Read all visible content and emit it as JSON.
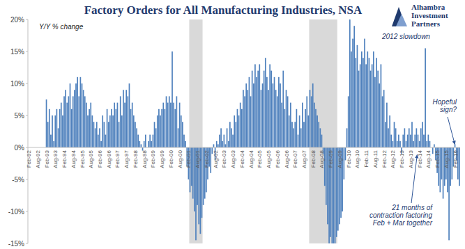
{
  "chart_data": {
    "type": "bar",
    "title": "Factory Orders for All Manufacturing Industries, NSA",
    "subtitle": "Y/Y % change",
    "source": "Alhambra Investment Partners",
    "color": "#4f81bd",
    "grid": false,
    "ylim": [
      -15,
      20
    ],
    "yticks": [
      {
        "value": 20,
        "label": "20%"
      },
      {
        "value": 15,
        "label": "15%"
      },
      {
        "value": 10,
        "label": "10%"
      },
      {
        "value": 5,
        "label": "5%"
      },
      {
        "value": 0,
        "label": "0%"
      },
      {
        "value": -5,
        "label": "-5%"
      },
      {
        "value": -10,
        "label": "-10%"
      },
      {
        "value": -15,
        "label": "-15%"
      }
    ],
    "recessions": [
      [
        109,
        117
      ],
      [
        190,
        208
      ]
    ],
    "annotations": [
      {
        "lines": [
          "2012 slowdown"
        ]
      },
      {
        "lines": [
          "Hopeful",
          "sign?"
        ]
      },
      {
        "lines": [
          "21 months of",
          "contraction factoring",
          "Feb + Mar together"
        ]
      }
    ],
    "categories": [
      "Feb-92",
      null,
      null,
      null,
      null,
      null,
      "Aug-92",
      null,
      null,
      null,
      null,
      null,
      "Feb-93",
      null,
      null,
      null,
      null,
      null,
      "Aug-93",
      null,
      null,
      null,
      null,
      null,
      "Feb-94",
      null,
      null,
      null,
      null,
      null,
      "Aug-94",
      null,
      null,
      null,
      null,
      null,
      "Feb-95",
      null,
      null,
      null,
      null,
      null,
      "Aug-95",
      null,
      null,
      null,
      null,
      null,
      "Feb-96",
      null,
      null,
      null,
      null,
      null,
      "Aug-96",
      null,
      null,
      null,
      null,
      null,
      "Feb-97",
      null,
      null,
      null,
      null,
      null,
      "Aug-97",
      null,
      null,
      null,
      null,
      null,
      "Feb-98",
      null,
      null,
      null,
      null,
      null,
      "Aug-98",
      null,
      null,
      null,
      null,
      null,
      "Feb-99",
      null,
      null,
      null,
      null,
      null,
      "Aug-99",
      null,
      null,
      null,
      null,
      null,
      "Feb-00",
      null,
      null,
      null,
      null,
      null,
      "Aug-00",
      null,
      null,
      null,
      null,
      null,
      "Feb-01",
      null,
      null,
      null,
      null,
      null,
      "Aug-01",
      null,
      null,
      null,
      null,
      null,
      "Feb-02",
      null,
      null,
      null,
      null,
      null,
      "Aug-02",
      null,
      null,
      null,
      null,
      null,
      "Feb-03",
      null,
      null,
      null,
      null,
      null,
      "Aug-03",
      null,
      null,
      null,
      null,
      null,
      "Feb-04",
      null,
      null,
      null,
      null,
      null,
      "Aug-04",
      null,
      null,
      null,
      null,
      null,
      "Feb-05",
      null,
      null,
      null,
      null,
      null,
      "Aug-05",
      null,
      null,
      null,
      null,
      null,
      "Feb-06",
      null,
      null,
      null,
      null,
      null,
      "Aug-06",
      null,
      null,
      null,
      null,
      null,
      "Feb-07",
      null,
      null,
      null,
      null,
      null,
      "Aug-07",
      null,
      null,
      null,
      null,
      null,
      "Feb-08",
      null,
      null,
      null,
      null,
      null,
      "Aug-08",
      null,
      null,
      null,
      null,
      null,
      "Feb-09",
      null,
      null,
      null,
      null,
      null,
      "Aug-09",
      null,
      null,
      null,
      null,
      null,
      "Feb-10",
      null,
      null,
      null,
      null,
      null,
      "Aug-10",
      null,
      null,
      null,
      null,
      null,
      "Feb-11",
      null,
      null,
      null,
      null,
      null,
      "Aug-11",
      null,
      null,
      null,
      null,
      null,
      "Feb-12",
      null,
      null,
      null,
      null,
      null,
      "Aug-12",
      null,
      null,
      null,
      null,
      null,
      "Feb-13",
      null,
      null,
      null,
      null,
      null,
      "Aug-13",
      null,
      null,
      null,
      null,
      null,
      "Feb-14",
      null,
      null,
      null,
      null,
      null,
      "Aug-14",
      null,
      null,
      null,
      null,
      null,
      "Feb-15",
      null,
      null,
      null,
      null,
      null,
      "Aug-15",
      null,
      null,
      null,
      null,
      null,
      "Feb-16",
      null,
      null,
      null
    ],
    "values": [
      null,
      null,
      null,
      null,
      null,
      null,
      null,
      null,
      null,
      null,
      null,
      null,
      7.5,
      4,
      6,
      2,
      5,
      1,
      5,
      6,
      3,
      6,
      7,
      5,
      8,
      9,
      7,
      8,
      10,
      6,
      8,
      9,
      10,
      11,
      8,
      11,
      10,
      9,
      8,
      7,
      5,
      6,
      7,
      5,
      4,
      3,
      4,
      2,
      3,
      1,
      5,
      4,
      2,
      6,
      4,
      5,
      6,
      5,
      7,
      6,
      7,
      4,
      8,
      5,
      9,
      7,
      9,
      8,
      10,
      6,
      7,
      5,
      4,
      3,
      2,
      1,
      0.5,
      -0.5,
      1,
      2,
      0,
      1,
      2,
      1,
      2,
      4,
      3,
      5,
      6,
      5,
      6,
      7,
      6,
      8,
      7,
      8,
      7,
      15,
      7,
      6,
      8,
      3,
      7,
      5,
      4,
      2,
      1,
      -3,
      -5,
      -7,
      -6,
      -8,
      -10,
      -14.5,
      -9,
      -12,
      -13.5,
      -11,
      -9,
      -8,
      -7,
      -5,
      -3,
      -4,
      -1,
      0.5,
      -2,
      1,
      0.5,
      2,
      3,
      1,
      2,
      0.5,
      3,
      1,
      4,
      3,
      2,
      5,
      4,
      6,
      5,
      7,
      6,
      9,
      8,
      10,
      9,
      11,
      8,
      12,
      10,
      13,
      11,
      12,
      13,
      9,
      10,
      12,
      14,
      11,
      9,
      13,
      12,
      10,
      11,
      9,
      8,
      11,
      10,
      7,
      12,
      6,
      9,
      8,
      5,
      7,
      4,
      3,
      4,
      6,
      2,
      5,
      3,
      7,
      4,
      6,
      8,
      5,
      9,
      8,
      10,
      7,
      6,
      5,
      4,
      3,
      2,
      -1,
      -6,
      -9,
      -12,
      -15,
      -14,
      -15,
      -15,
      -15,
      -14,
      -13,
      -12,
      -11,
      -10,
      -5,
      -2,
      3,
      8,
      20,
      15,
      17,
      19,
      14,
      16,
      12,
      13,
      15,
      14,
      17,
      13,
      15,
      14,
      12,
      13,
      15,
      11,
      14,
      12,
      10,
      13,
      8,
      9,
      4,
      7,
      3,
      5,
      2,
      1,
      4,
      3,
      1,
      2,
      1,
      -1,
      2,
      3,
      1,
      2,
      3,
      2,
      4,
      1,
      2,
      3,
      2,
      1,
      3,
      4,
      2,
      15.5,
      1,
      2,
      1,
      0,
      -1,
      0.5,
      -2,
      -4,
      -6,
      -7,
      -5,
      -8,
      -6,
      -5,
      -7,
      -14.5,
      -6,
      -5,
      -3,
      0.5,
      -2,
      -5,
      -6
    ]
  }
}
